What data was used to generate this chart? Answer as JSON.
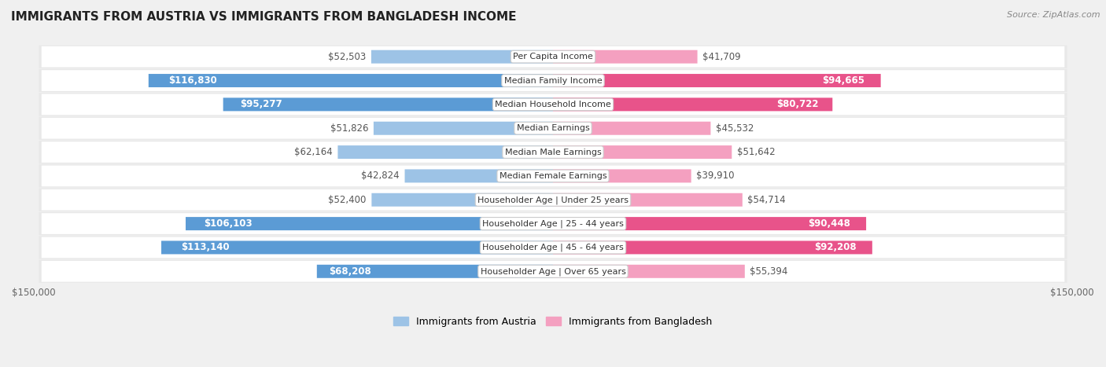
{
  "title": "IMMIGRANTS FROM AUSTRIA VS IMMIGRANTS FROM BANGLADESH INCOME",
  "source": "Source: ZipAtlas.com",
  "categories": [
    "Per Capita Income",
    "Median Family Income",
    "Median Household Income",
    "Median Earnings",
    "Median Male Earnings",
    "Median Female Earnings",
    "Householder Age | Under 25 years",
    "Householder Age | 25 - 44 years",
    "Householder Age | 45 - 64 years",
    "Householder Age | Over 65 years"
  ],
  "austria_values": [
    52503,
    116830,
    95277,
    51826,
    62164,
    42824,
    52400,
    106103,
    113140,
    68208
  ],
  "bangladesh_values": [
    41709,
    94665,
    80722,
    45532,
    51642,
    39910,
    54714,
    90448,
    92208,
    55394
  ],
  "austria_labels": [
    "$52,503",
    "$116,830",
    "$95,277",
    "$51,826",
    "$62,164",
    "$42,824",
    "$52,400",
    "$106,103",
    "$113,140",
    "$68,208"
  ],
  "bangladesh_labels": [
    "$41,709",
    "$94,665",
    "$80,722",
    "$45,532",
    "$51,642",
    "$39,910",
    "$54,714",
    "$90,448",
    "$92,208",
    "$55,394"
  ],
  "austria_color_dark": "#5b9bd5",
  "austria_color_light": "#9dc3e6",
  "bangladesh_color_dark": "#e8538a",
  "bangladesh_color_light": "#f4a0c0",
  "max_value": 150000,
  "bar_height": 0.55,
  "background_color": "#f0f0f0",
  "row_bg_color": "#e8e8e8",
  "row_inner_color": "#ffffff",
  "legend_austria": "Immigrants from Austria",
  "legend_bangladesh": "Immigrants from Bangladesh",
  "inside_label_threshold": 0.45,
  "label_fontsize": 8.5,
  "cat_fontsize": 8.0
}
